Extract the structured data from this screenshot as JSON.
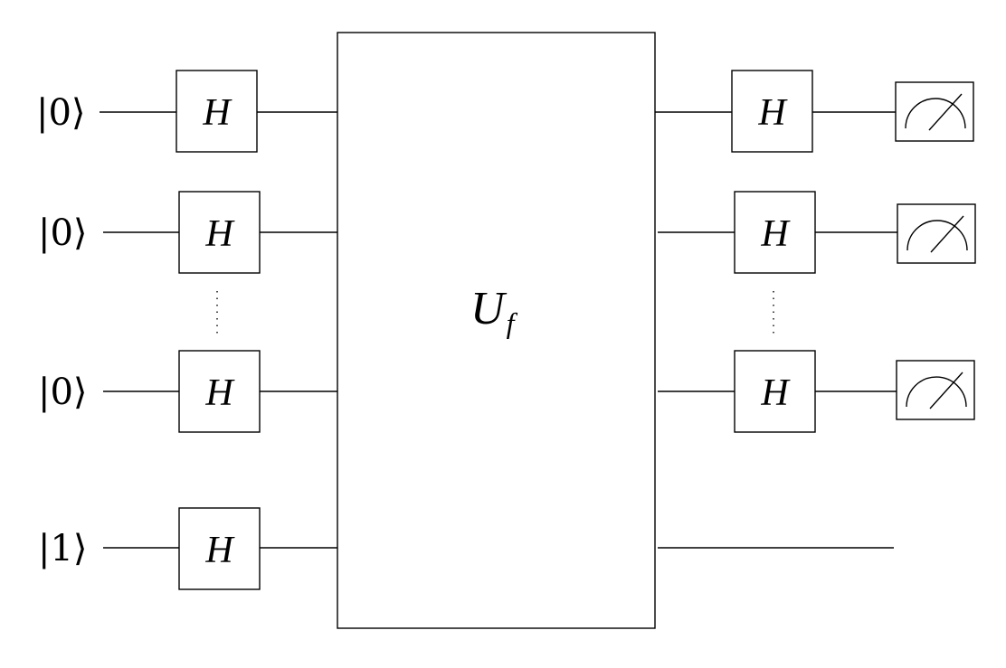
{
  "circuit": {
    "inputs": [
      {
        "state": "|0⟩"
      },
      {
        "state": "|0⟩"
      },
      {
        "state": "|0⟩"
      },
      {
        "state": "|1⟩"
      }
    ],
    "gate_label": "H",
    "oracle": {
      "label": "U",
      "subscript": "f"
    },
    "measurement_icon": "meter-icon",
    "ellipsis": "vertical-dots"
  }
}
